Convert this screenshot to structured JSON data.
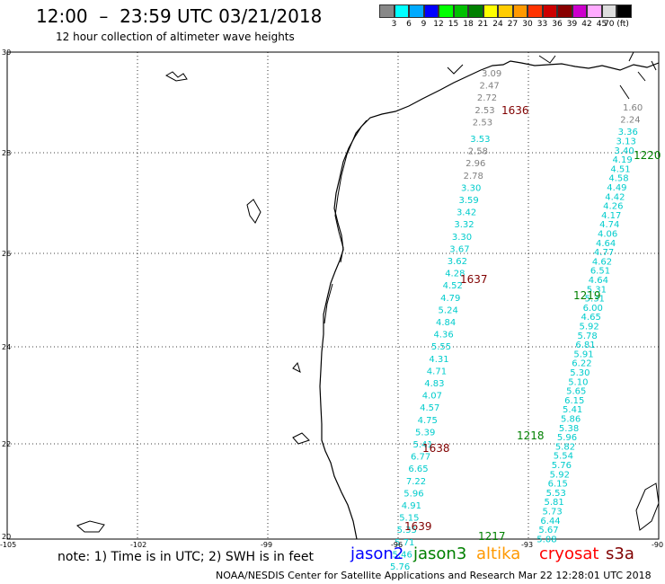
{
  "header": {
    "title": "12:00  –  23:59 UTC 03/21/2018",
    "subtitle": "12 hour collection of altimeter wave heights"
  },
  "scale": {
    "labels": [
      "3",
      "6",
      "9",
      "12",
      "15",
      "18",
      "21",
      "24",
      "27",
      "30",
      "33",
      "36",
      "39",
      "42",
      "45",
      "70 (ft)"
    ],
    "colors": [
      "#888888",
      "#00ffff",
      "#00aaff",
      "#0000ff",
      "#00ff00",
      "#00c000",
      "#008000",
      "#ffff00",
      "#ffcc00",
      "#ff9900",
      "#ff3300",
      "#cc0000",
      "#880000",
      "#cc00cc",
      "#ffaaff",
      "#dddddd",
      "#000000"
    ]
  },
  "axes": {
    "lat_labels": [
      "30",
      "28",
      "26",
      "24",
      "22",
      "20"
    ],
    "lon_labels": [
      "-105",
      "-102",
      "-99",
      "-96",
      "-93",
      "-90"
    ]
  },
  "passes": [
    {
      "label": "1636",
      "color": "#800000"
    },
    {
      "label": "1637",
      "color": "#800000"
    },
    {
      "label": "1638",
      "color": "#800000"
    },
    {
      "label": "1639",
      "color": "#800000"
    },
    {
      "label": "1220",
      "color": "#008000"
    },
    {
      "label": "1219",
      "color": "#008000"
    },
    {
      "label": "1218",
      "color": "#008000"
    },
    {
      "label": "1217",
      "color": "#008000"
    }
  ],
  "track_west": {
    "grey": [
      "3.09",
      "2.47",
      "2.72",
      "2.53",
      "2.53"
    ],
    "grey2": [
      "2.58",
      "2.96",
      "2.78"
    ],
    "cyan": [
      "3.53",
      "3.30",
      "3.59",
      "3.42",
      "3.32",
      "3.30",
      "3.67",
      "3.62",
      "4.28",
      "4.52",
      "4.79",
      "5.24",
      "4.84",
      "4.36",
      "5.55",
      "4.31",
      "4.71",
      "4.83",
      "4.07",
      "4.57",
      "4.75",
      "5.39",
      "5.41",
      "6.77",
      "6.65",
      "7.22",
      "5.96",
      "4.91",
      "5.15",
      "5.35",
      "5.71",
      "5.46",
      "5.76"
    ]
  },
  "track_east": {
    "grey": [
      "1.60",
      "2.24"
    ],
    "cyan": [
      "3.36",
      "3.13",
      "3.40",
      "4.19",
      "4.51",
      "4.58",
      "4.49",
      "4.42",
      "4.26",
      "4.17",
      "4.74",
      "4.06",
      "4.64",
      "4.77",
      "4.62",
      "6.51",
      "4.64",
      "5.31",
      "5.31",
      "6.00",
      "4.65",
      "5.92",
      "5.78",
      "6.81",
      "5.91",
      "6.22",
      "5.30",
      "5.10",
      "5.65",
      "6.15",
      "5.41",
      "5.86",
      "5.38",
      "5.96",
      "5.82",
      "5.54",
      "5.76",
      "5.92",
      "6.15",
      "5.53",
      "5.81",
      "5.73",
      "6.44",
      "5.67",
      "5.08"
    ]
  },
  "note": "note: 1) Time is in UTC; 2) SWH is in feet",
  "satellites": [
    {
      "name": "jason2",
      "color": "#0000ff"
    },
    {
      "name": "jason3",
      "color": "#008000"
    },
    {
      "name": "altika",
      "color": "#ff9900"
    },
    {
      "name": "cryosat",
      "color": "#ff0000"
    },
    {
      "name": "s3a",
      "color": "#800000"
    }
  ],
  "footer": "NOAA/NESDIS Center for Satellite Applications and Research     Mar 22 12:28:01 UTC 2018"
}
